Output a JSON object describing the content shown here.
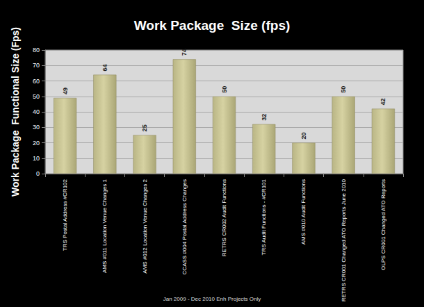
{
  "chart_data": {
    "type": "bar",
    "title": "Work Package  Size (fps)",
    "ylabel": "Work Package  Functional Size (Fps)",
    "xlabel": "Jan 2009 - Dec 2010 Enh Projects Only",
    "categories": [
      "TRS Postal Address #CR102",
      "AMS #011 Location Venue Changes 1",
      "AMS #012 Location Venue Changes 2",
      "CCASS #004 Postal Address Changes",
      "RETRS CR002 Audit Functions",
      "TRS Audit Functions - #CR101",
      "AMS #010 Audit Functions",
      "RETRS CR001 Changed ATO Reports June 2010",
      "OLPS CR001 Changed ATO Reports"
    ],
    "values": [
      49,
      64,
      25,
      74,
      50,
      32,
      20,
      50,
      42
    ],
    "color": "#d6d2a2",
    "ylim": [
      0,
      80
    ],
    "yticks": [
      0,
      10,
      20,
      30,
      40,
      50,
      60,
      70,
      80
    ],
    "grid": true,
    "data_labels": true
  }
}
